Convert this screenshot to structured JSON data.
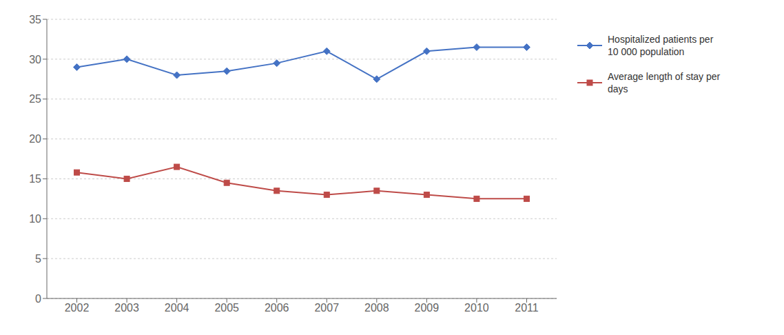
{
  "chart_data": {
    "type": "line",
    "x": [
      2002,
      2003,
      2004,
      2005,
      2006,
      2007,
      2008,
      2009,
      2010,
      2011
    ],
    "series": [
      {
        "name": "Hospitalized patients per\n10 000 population",
        "color": "#4472C4",
        "marker": "diamond",
        "values": [
          29.0,
          30.0,
          28.0,
          28.5,
          29.5,
          31.0,
          27.5,
          31.0,
          31.5,
          31.5
        ]
      },
      {
        "name": "Average length of stay per\ndays",
        "color": "#BE4B48",
        "marker": "square",
        "values": [
          15.8,
          15.0,
          16.5,
          14.5,
          13.5,
          13.0,
          13.5,
          13.0,
          12.5,
          12.5
        ]
      }
    ],
    "xlim": [
      2001.4,
      2011.6
    ],
    "xticks": [
      2002,
      2003,
      2004,
      2005,
      2006,
      2007,
      2008,
      2009,
      2010,
      2011
    ],
    "ylim": [
      0,
      35
    ],
    "yticks": [
      0,
      5,
      10,
      15,
      20,
      25,
      30,
      35
    ],
    "grid": "y",
    "legend": "right"
  }
}
